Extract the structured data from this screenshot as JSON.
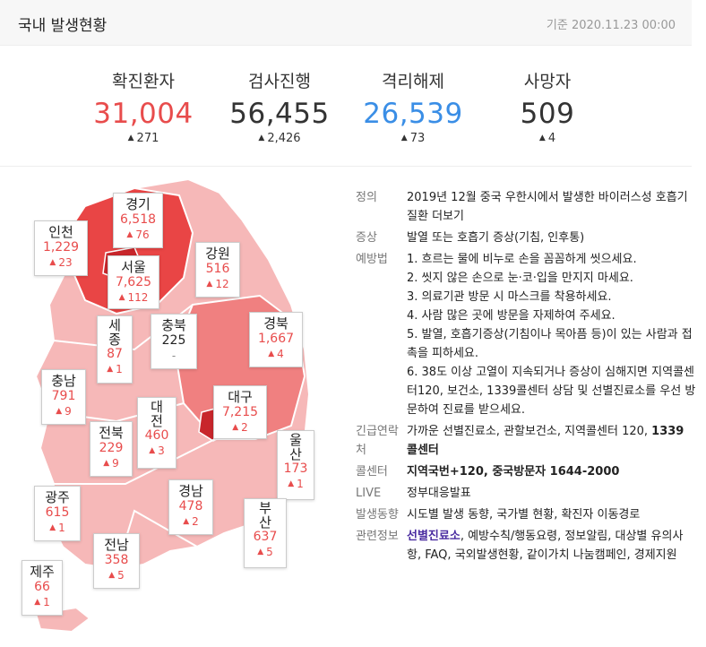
{
  "header": {
    "title": "국내 발생현황",
    "date": "기준 2020.11.23 00:00"
  },
  "stats": [
    {
      "label": "확진환자",
      "value": "31,004",
      "delta": "271",
      "color": "#e84c4c"
    },
    {
      "label": "검사진행",
      "value": "56,455",
      "delta": "2,426",
      "color": "#333333"
    },
    {
      "label": "격리해제",
      "value": "26,539",
      "delta": "73",
      "color": "#3a8ee6"
    },
    {
      "label": "사망자",
      "value": "509",
      "delta": "4",
      "color": "#333333"
    }
  ],
  "regions": [
    {
      "name": "경기",
      "count": "6,518",
      "delta": "76"
    },
    {
      "name": "인천",
      "count": "1,229",
      "delta": "23"
    },
    {
      "name": "서울",
      "count": "7,625",
      "delta": "112"
    },
    {
      "name": "강원",
      "count": "516",
      "delta": "12"
    },
    {
      "name": "세종",
      "count": "87",
      "delta": "1"
    },
    {
      "name": "충북",
      "count": "225",
      "delta": "-"
    },
    {
      "name": "경북",
      "count": "1,667",
      "delta": "4"
    },
    {
      "name": "충남",
      "count": "791",
      "delta": "9"
    },
    {
      "name": "대전",
      "count": "460",
      "delta": "3"
    },
    {
      "name": "대구",
      "count": "7,215",
      "delta": "2"
    },
    {
      "name": "전북",
      "count": "229",
      "delta": "9"
    },
    {
      "name": "울산",
      "count": "173",
      "delta": "1"
    },
    {
      "name": "광주",
      "count": "615",
      "delta": "1"
    },
    {
      "name": "경남",
      "count": "478",
      "delta": "2"
    },
    {
      "name": "부산",
      "count": "637",
      "delta": "5"
    },
    {
      "name": "전남",
      "count": "358",
      "delta": "5"
    },
    {
      "name": "제주",
      "count": "66",
      "delta": "1"
    }
  ],
  "info": {
    "definition_label": "정의",
    "definition_text": "2019년 12월 중국 우한시에서 발생한 바이러스성 호흡기 질환",
    "definition_more": "더보기",
    "symptom_label": "증상",
    "symptom_text": "발열 또는 호흡기 증상(기침, 인후통)",
    "prevention_label": "예방법",
    "prevention_items": [
      "1. 흐르는 물에 비누로 손을 꼼꼼하게 씻으세요.",
      "2. 씻지 않은 손으로 눈·코·입을 만지지 마세요.",
      "3. 의료기관 방문 시 마스크를 착용하세요.",
      "4. 사람 많은 곳에 방문을 자제하여 주세요.",
      "5. 발열, 호흡기증상(기침이나 목아픔 등)이 있는 사람과 접촉을 피하세요.",
      "6. 38도 이상 고열이 지속되거나 증상이 심해지면 지역콜센터120, 보건소, 1339콜센터 상담 및 선별진료소를 우선 방문하여 진료를 받으세요."
    ],
    "emergency_label": "긴급연락처",
    "emergency_text": "가까운 선별진료소, 관할보건소, 지역콜센터 120,",
    "emergency_bold": "1339 콜센터",
    "callcenter_label": "콜센터",
    "callcenter_text": "지역국번+120, 중국방문자 1644-2000",
    "live_label": "LIVE",
    "live_text": "정부대응발표",
    "trend_label": "발생동향",
    "trend_links": [
      "시도별 발생 동향",
      "국가별 현황",
      "확진자 이동경로"
    ],
    "related_label": "관련정보",
    "related_first": "선별진료소",
    "related_links": [
      "예방수칙/행동요령",
      "정보알림",
      "대상별 유의사항",
      "FAQ",
      "국외발생현황",
      "같이가치 나눔캠페인",
      "경제지원"
    ]
  }
}
